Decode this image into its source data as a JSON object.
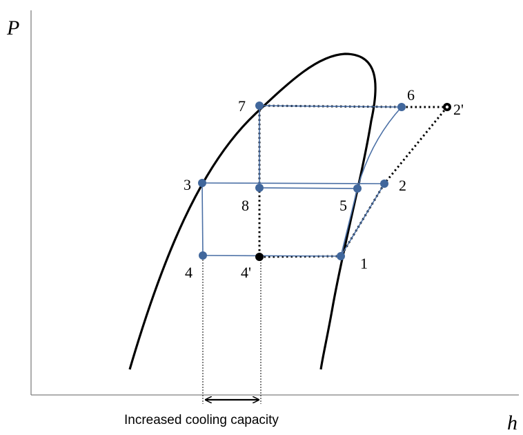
{
  "axes": {
    "y_label": "P",
    "x_label": "h"
  },
  "caption": "Increased cooling capacity",
  "colors": {
    "cycle": "#4a6fa5",
    "point_fill": "#41679c",
    "curve": "#000000",
    "dotted": "#000000"
  },
  "points": [
    {
      "id": "p1",
      "label": "1"
    },
    {
      "id": "p2",
      "label": "2"
    },
    {
      "id": "p2prime",
      "label": "2'"
    },
    {
      "id": "p3",
      "label": "3"
    },
    {
      "id": "p4",
      "label": "4"
    },
    {
      "id": "p4prime",
      "label": "4'"
    },
    {
      "id": "p5",
      "label": "5"
    },
    {
      "id": "p6",
      "label": "6"
    },
    {
      "id": "p7",
      "label": "7"
    },
    {
      "id": "p8",
      "label": "8"
    }
  ]
}
